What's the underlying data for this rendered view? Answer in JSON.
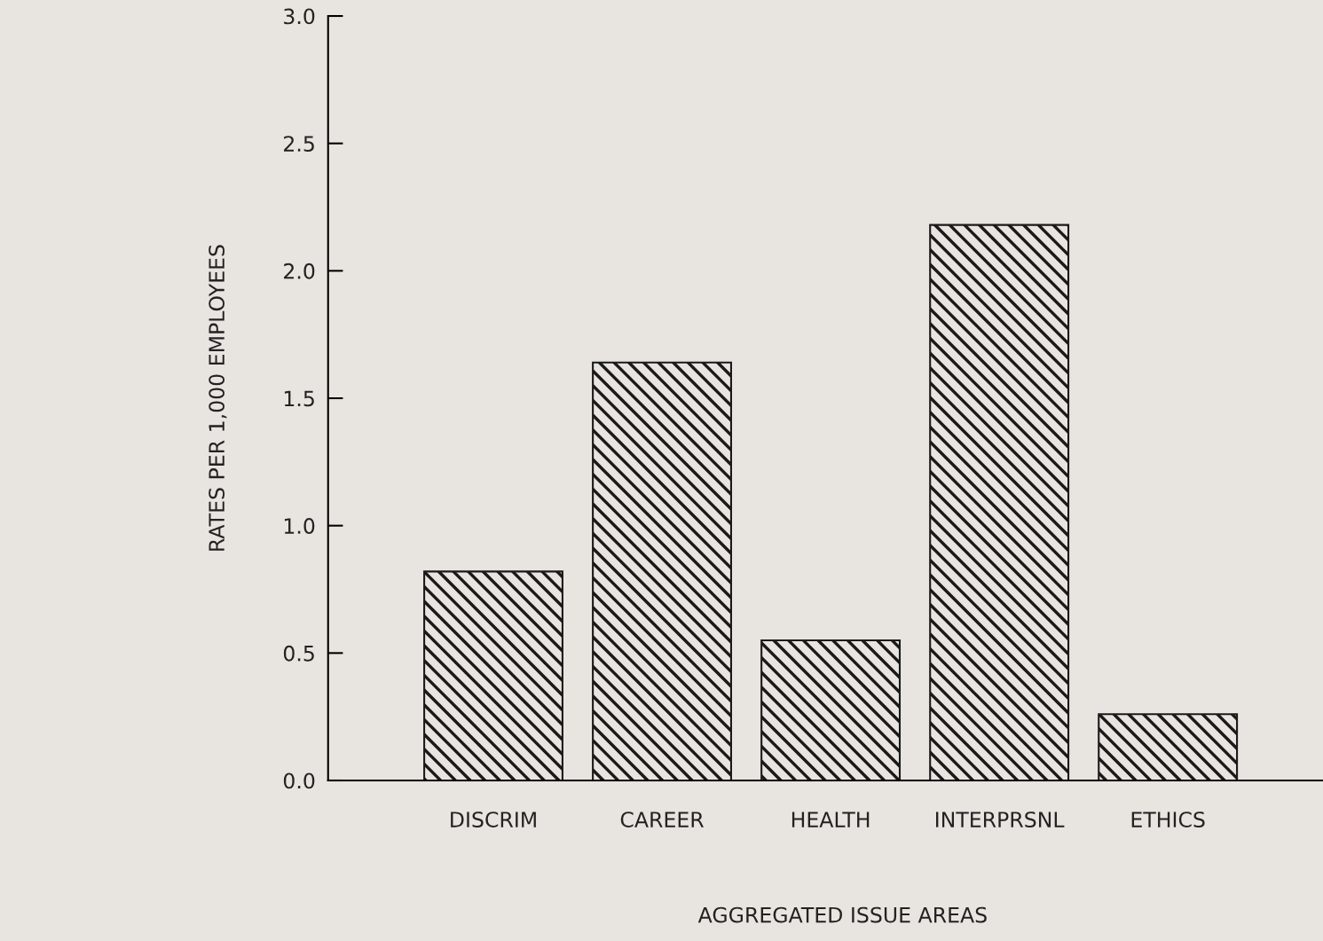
{
  "chart_data": {
    "type": "bar",
    "xlabel": "AGGREGATED ISSUE AREAS",
    "ylabel": "RATES PER 1,000 EMPLOYEES",
    "categories": [
      "DISCRIM",
      "CAREER",
      "HEALTH",
      "INTERPRSNL",
      "ETHICS"
    ],
    "values": [
      0.82,
      1.64,
      0.55,
      2.18,
      0.26
    ],
    "color": "#1a1a1a",
    "ylim": [
      0,
      3.0
    ],
    "yticks": [
      {
        "value": 0,
        "label": "0.0"
      },
      {
        "value": 0.5,
        "label": "0.5"
      },
      {
        "value": 1.0,
        "label": "1.0"
      },
      {
        "value": 1.5,
        "label": "1.5"
      },
      {
        "value": 2.0,
        "label": "2.0"
      },
      {
        "value": 2.5,
        "label": "2.5"
      },
      {
        "value": 3.0,
        "label": "3.0"
      }
    ],
    "grid": false
  }
}
